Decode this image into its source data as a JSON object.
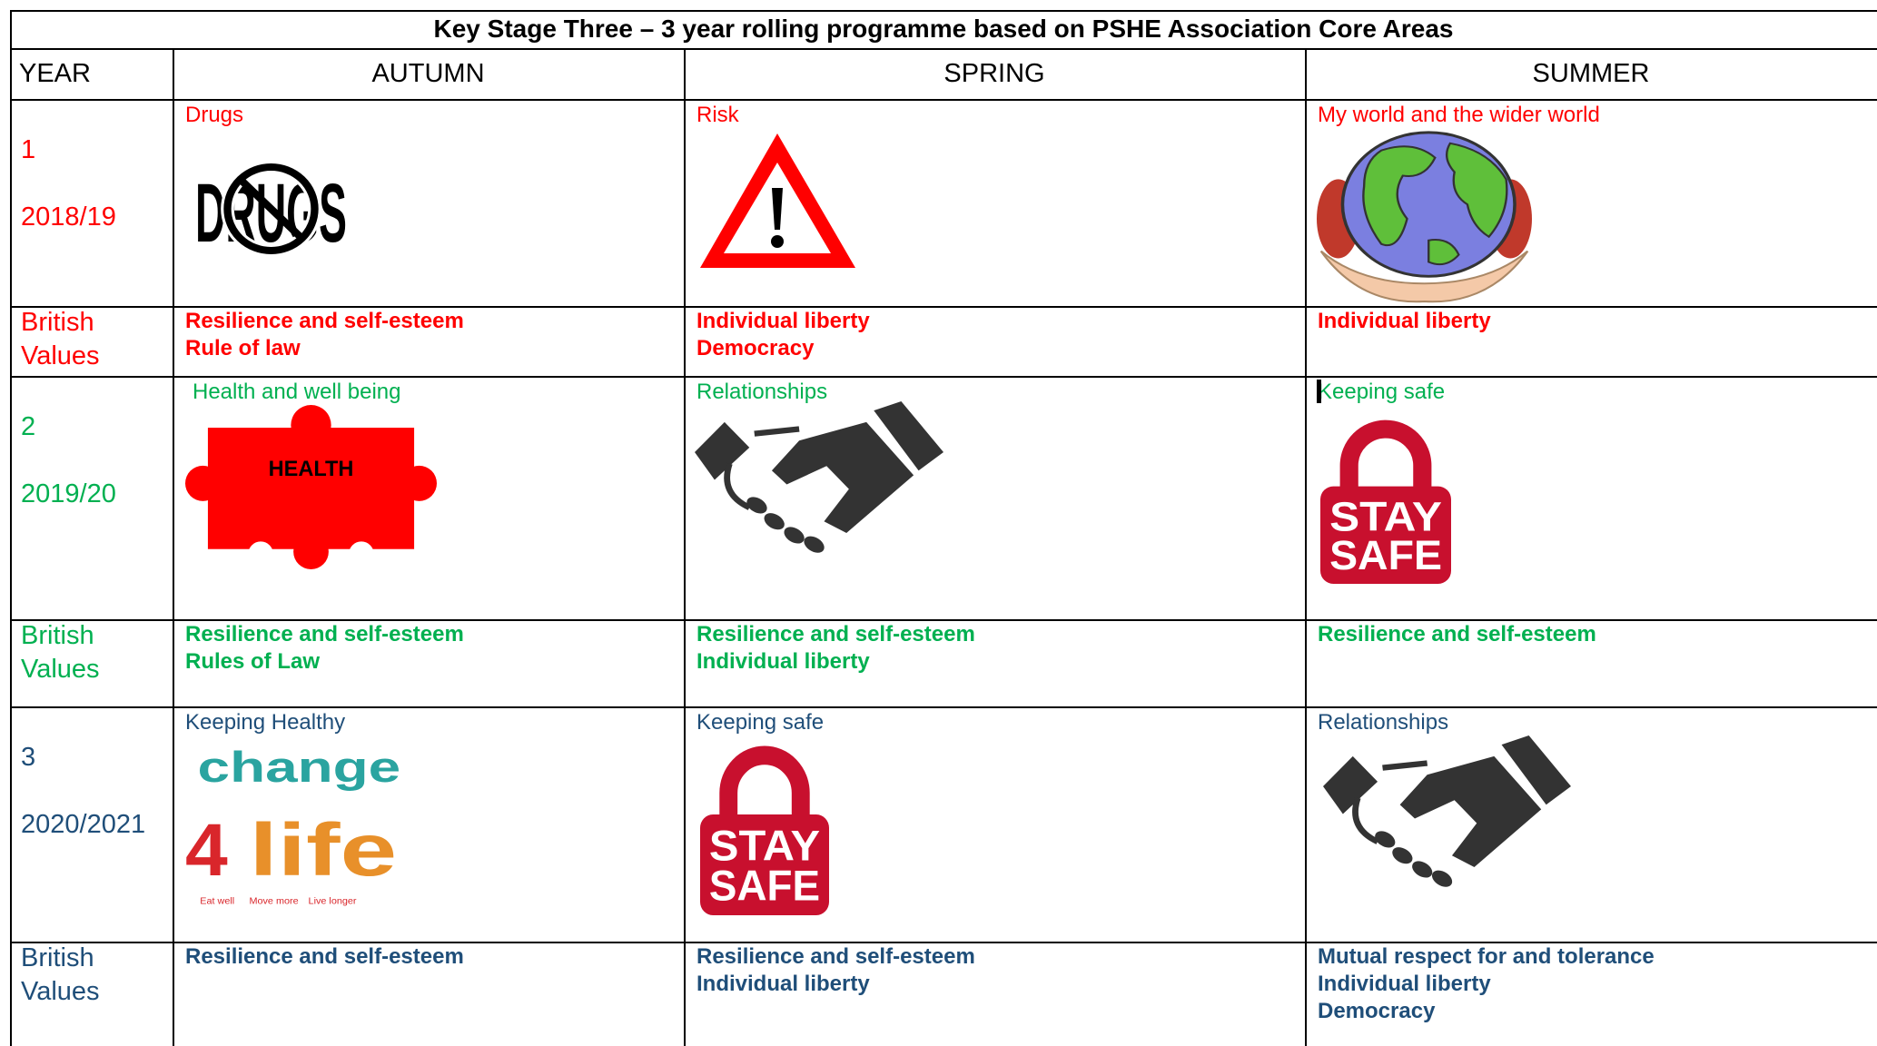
{
  "title": "Key Stage Three – 3 year rolling programme based on PSHE Association Core Areas",
  "headers": [
    "YEAR",
    "AUTUMN",
    "SPRING",
    "SUMMER"
  ],
  "rows": [
    {
      "year": "1",
      "period": "2018/19",
      "color": "#ff0000",
      "values_label": "British Values",
      "topics": [
        {
          "title": "Drugs",
          "image_text": [
            "DRUGS"
          ]
        },
        {
          "title": "Risk"
        },
        {
          "title": "My world and the wider world"
        }
      ],
      "values": [
        [
          "Resilience and self-esteem",
          "Rule of law"
        ],
        [
          "Individual liberty",
          "Democracy"
        ],
        [
          "Individual liberty"
        ]
      ]
    },
    {
      "year": "2",
      "period": "2019/20",
      "color": "#00b050",
      "values_label": "British Values",
      "topics": [
        {
          "title": "Health and well being",
          "image_text": [
            "HEALTH"
          ]
        },
        {
          "title": "Relationships"
        },
        {
          "title": "Keeping safe",
          "image_text": [
            "STAY",
            "SAFE"
          ]
        }
      ],
      "values": [
        [
          "Resilience and self-esteem",
          "Rules of Law"
        ],
        [
          "Resilience and self-esteem",
          "Individual liberty"
        ],
        [
          "Resilience and self-esteem"
        ]
      ]
    },
    {
      "year": "3",
      "period": "2020/2021",
      "color": "#1f4e79",
      "values_label": "British Values",
      "topics": [
        {
          "title": "Keeping Healthy",
          "image_text": [
            "change",
            "4",
            "life",
            "Eat well",
            "Move more",
            "Live longer"
          ]
        },
        {
          "title": "Keeping safe",
          "image_text": [
            "STAY",
            "SAFE"
          ]
        },
        {
          "title": "Relationships"
        }
      ],
      "values": [
        [
          "Resilience and self-esteem"
        ],
        [
          "Resilience and self-esteem",
          "Individual liberty"
        ],
        [
          "Mutual respect for and tolerance",
          "Individual liberty",
          "Democracy"
        ]
      ]
    }
  ]
}
